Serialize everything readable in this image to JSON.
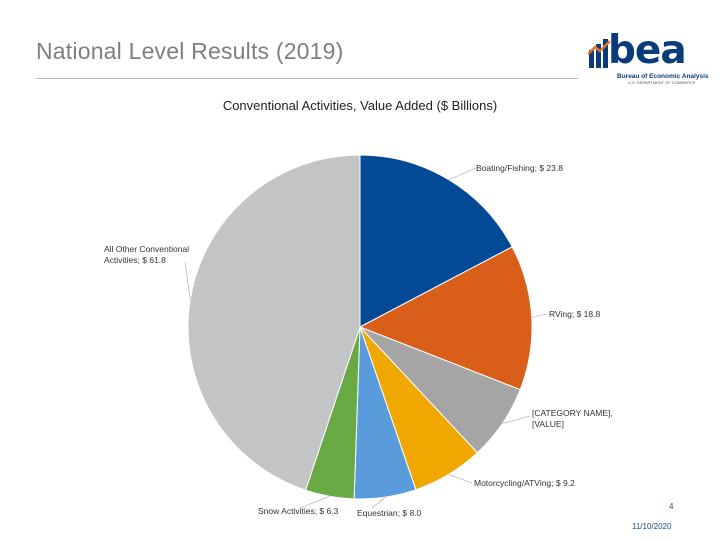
{
  "slide": {
    "title": "National Level Results (2019)",
    "page_number": "4",
    "date": "11/10/2020"
  },
  "logo": {
    "word": "bea",
    "name": "Bureau of Economic Analysis",
    "department": "U.S. DEPARTMENT OF COMMERCE",
    "color": "#0b3c7a",
    "accent": "#e07a26"
  },
  "chart_data": {
    "type": "pie",
    "title": "Conventional Activities, Value Added ($ Billions)",
    "slices": [
      {
        "name": "Boating/Fishing",
        "value": 23.8,
        "label": "Boating/Fishing; $ 23.8",
        "color": "#034a96"
      },
      {
        "name": "RVing",
        "value": 18.8,
        "label": "RVing; $ 18.8",
        "color": "#d95e1a"
      },
      {
        "name": "[CATEGORY NAME]",
        "value": 9.8,
        "label": "[CATEGORY NAME], [VALUE]",
        "color": "#a5a5a5"
      },
      {
        "name": "Motorcycling/ATVing",
        "value": 9.2,
        "label": "Motorcycling/ATVing; $ 9.2",
        "color": "#f0a800"
      },
      {
        "name": "Equestrian",
        "value": 8.0,
        "label": "Equestrian; $ 8.0",
        "color": "#5a9bdc"
      },
      {
        "name": "Snow Activities",
        "value": 6.3,
        "label": "Snow Activities; $ 6.3",
        "color": "#6aaa45"
      },
      {
        "name": "All Other Conventional Activities",
        "value": 61.8,
        "label": "All Other Conventional Activities; $ 61.8",
        "color": "#c2c4c5"
      }
    ]
  }
}
